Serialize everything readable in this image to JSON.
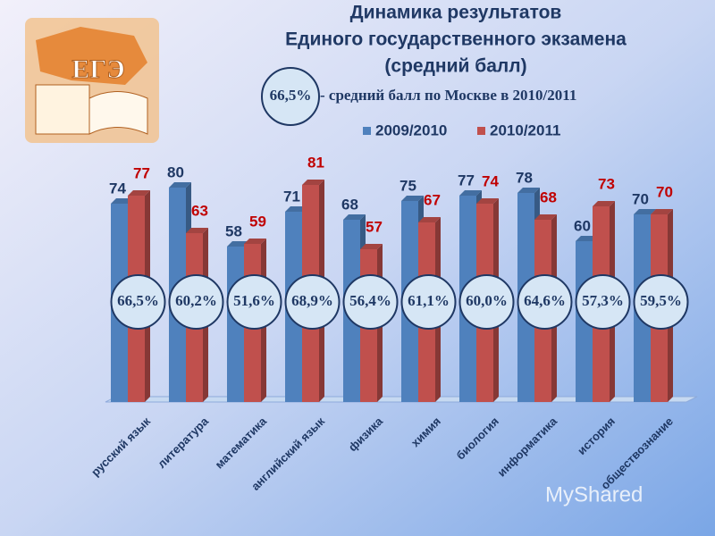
{
  "chart_data": {
    "type": "bar",
    "title_lines": [
      "Динамика результатов",
      "Единого государственного экзамена",
      "(средний балл)"
    ],
    "note_circle": "66,5%",
    "note_text": " - средний балл по Москве в 2010/2011",
    "categories": [
      "русский язык",
      "литература",
      "математика",
      "английский язык",
      "физика",
      "химия",
      "биология",
      "информатика",
      "история",
      "обществознание"
    ],
    "series": [
      {
        "name": "2009/2010",
        "color": "#4f81bd",
        "label_color": "#1f3864",
        "values": [
          74,
          80,
          58,
          71,
          68,
          75,
          77,
          78,
          60,
          70
        ]
      },
      {
        "name": "2010/2011",
        "color": "#c0504d",
        "label_color": "#c00000",
        "values": [
          77,
          63,
          59,
          81,
          57,
          67,
          74,
          68,
          73,
          70
        ]
      }
    ],
    "circle_labels": [
      "66,5%",
      "60,2%",
      "51,6%",
      "68,9%",
      "56,4%",
      "61,1%",
      "60,0%",
      "64,6%",
      "57,3%",
      "59,5%"
    ],
    "ylim": [
      0,
      80
    ],
    "logo_text": "ЕГЭ",
    "watermark": "MyShared"
  }
}
